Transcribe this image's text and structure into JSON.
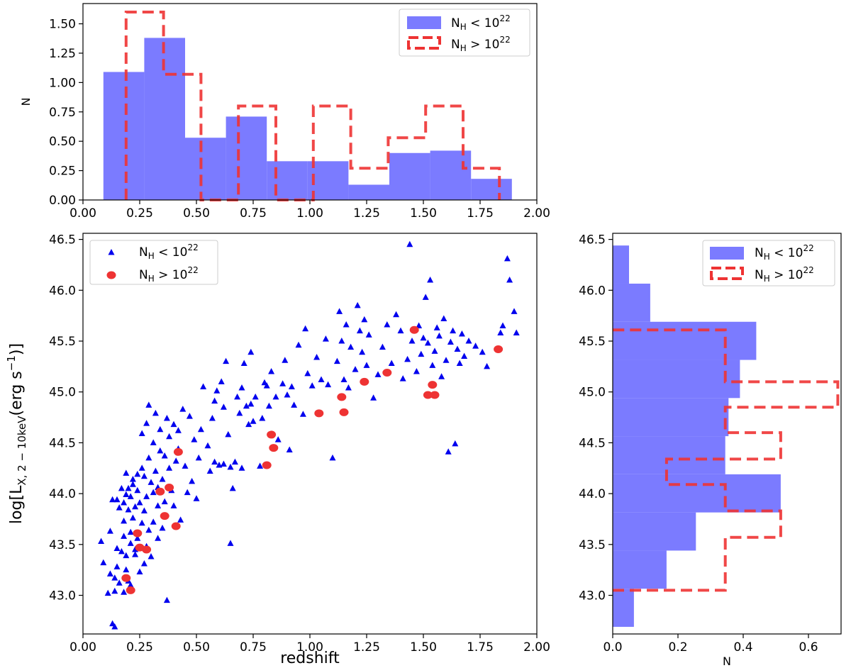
{
  "colors": {
    "blue_fill": "#7b7bff",
    "blue_point": "#0000ee",
    "red": "#ee3333"
  },
  "legend": {
    "low_label": "N",
    "low_sub": "H",
    "low_rel": " < 10",
    "low_exp": "22",
    "high_label": "N",
    "high_sub": "H",
    "high_rel": " > 10",
    "high_exp": "22"
  },
  "chart_data": [
    {
      "id": "top-histogram",
      "type": "bar",
      "title": "",
      "xlabel": "",
      "ylabel": "N",
      "xlim": [
        0.0,
        2.0
      ],
      "ylim": [
        0.0,
        1.6
      ],
      "xticks": [
        "0.00",
        "0.25",
        "0.50",
        "0.75",
        "1.00",
        "1.25",
        "1.50",
        "1.75",
        "2.00"
      ],
      "yticks": [
        "0.00",
        "0.25",
        "0.50",
        "0.75",
        "1.00",
        "1.25",
        "1.50"
      ],
      "series": [
        {
          "name": "N_H < 10^22",
          "style": "filled",
          "edges": [
            0.09,
            0.27,
            0.45,
            0.63,
            0.81,
            0.99,
            1.17,
            1.35,
            1.53,
            1.71,
            1.89
          ],
          "values": [
            1.09,
            1.38,
            0.53,
            0.71,
            0.33,
            0.33,
            0.13,
            0.4,
            0.42,
            0.18
          ]
        },
        {
          "name": "N_H > 10^22",
          "style": "dashed-step",
          "edges": [
            0.19,
            0.355,
            0.52,
            0.685,
            0.85,
            1.015,
            1.18,
            1.345,
            1.51,
            1.675,
            1.835
          ],
          "values": [
            1.6,
            1.07,
            0.0,
            0.8,
            0.0,
            0.8,
            0.27,
            0.53,
            0.8,
            0.27
          ]
        }
      ]
    },
    {
      "id": "main-scatter",
      "type": "scatter",
      "title": "",
      "xlabel": "redshift",
      "ylabel": "log[L",
      "ylabel_sub": "X, 2 − 10keV",
      "ylabel_unit": "(erg s",
      "ylabel_exp": "−1",
      "ylabel_end": ")]",
      "xlim": [
        0.0,
        2.0
      ],
      "ylim": [
        42.62,
        46.56
      ],
      "xticks": [
        "0.00",
        "0.25",
        "0.50",
        "0.75",
        "1.00",
        "1.25",
        "1.50",
        "1.75",
        "2.00"
      ],
      "yticks": [
        "43.0",
        "43.5",
        "44.0",
        "44.5",
        "45.0",
        "45.5",
        "46.0",
        "46.5"
      ],
      "series": [
        {
          "name": "N_H < 10^22",
          "marker": "triangle",
          "points": [
            [
              0.08,
              43.53
            ],
            [
              0.09,
              43.32
            ],
            [
              0.11,
              43.02
            ],
            [
              0.12,
              43.21
            ],
            [
              0.12,
              43.63
            ],
            [
              0.13,
              43.94
            ],
            [
              0.13,
              42.72
            ],
            [
              0.14,
              42.69
            ],
            [
              0.14,
              43.17
            ],
            [
              0.14,
              43.04
            ],
            [
              0.15,
              43.94
            ],
            [
              0.15,
              43.46
            ],
            [
              0.15,
              43.28
            ],
            [
              0.16,
              43.86
            ],
            [
              0.16,
              43.12
            ],
            [
              0.17,
              43.43
            ],
            [
              0.17,
              44.05
            ],
            [
              0.18,
              43.73
            ],
            [
              0.18,
              43.03
            ],
            [
              0.18,
              43.91
            ],
            [
              0.18,
              43.58
            ],
            [
              0.19,
              44.2
            ],
            [
              0.19,
              43.25
            ],
            [
              0.19,
              43.99
            ],
            [
              0.19,
              43.39
            ],
            [
              0.2,
              43.14
            ],
            [
              0.2,
              43.84
            ],
            [
              0.2,
              44.05
            ],
            [
              0.21,
              43.62
            ],
            [
              0.21,
              43.97
            ],
            [
              0.21,
              43.51
            ],
            [
              0.21,
              43.1
            ],
            [
              0.22,
              44.14
            ],
            [
              0.22,
              44.09
            ],
            [
              0.22,
              43.76
            ],
            [
              0.23,
              43.45
            ],
            [
              0.23,
              43.87
            ],
            [
              0.23,
              43.4
            ],
            [
              0.24,
              44.19
            ],
            [
              0.24,
              44.03
            ],
            [
              0.24,
              43.56
            ],
            [
              0.25,
              43.23
            ],
            [
              0.25,
              43.91
            ],
            [
              0.26,
              44.59
            ],
            [
              0.26,
              43.71
            ],
            [
              0.26,
              44.25
            ],
            [
              0.27,
              43.31
            ],
            [
              0.27,
              44.17
            ],
            [
              0.27,
              43.83
            ],
            [
              0.28,
              43.48
            ],
            [
              0.28,
              44.69
            ],
            [
              0.28,
              43.97
            ],
            [
              0.29,
              43.64
            ],
            [
              0.29,
              44.87
            ],
            [
              0.29,
              44.35
            ],
            [
              0.3,
              44.11
            ],
            [
              0.3,
              43.38
            ],
            [
              0.31,
              44.01
            ],
            [
              0.31,
              43.72
            ],
            [
              0.31,
              44.5
            ],
            [
              0.32,
              44.79
            ],
            [
              0.32,
              44.22
            ],
            [
              0.33,
              43.56
            ],
            [
              0.33,
              43.88
            ],
            [
              0.33,
              44.06
            ],
            [
              0.34,
              44.63
            ],
            [
              0.34,
              44.42
            ],
            [
              0.35,
              43.66
            ],
            [
              0.35,
              44.14
            ],
            [
              0.36,
              44.37
            ],
            [
              0.36,
              43.92
            ],
            [
              0.37,
              42.95
            ],
            [
              0.37,
              44.74
            ],
            [
              0.38,
              44.25
            ],
            [
              0.38,
              44.56
            ],
            [
              0.39,
              44.03
            ],
            [
              0.4,
              44.68
            ],
            [
              0.4,
              43.88
            ],
            [
              0.41,
              44.32
            ],
            [
              0.42,
              44.44
            ],
            [
              0.42,
              44.62
            ],
            [
              0.43,
              43.74
            ],
            [
              0.44,
              44.83
            ],
            [
              0.45,
              44.27
            ],
            [
              0.46,
              44.01
            ],
            [
              0.47,
              44.76
            ],
            [
              0.48,
              44.12
            ],
            [
              0.49,
              44.53
            ],
            [
              0.5,
              43.95
            ],
            [
              0.51,
              44.35
            ],
            [
              0.52,
              44.63
            ],
            [
              0.53,
              45.05
            ],
            [
              0.55,
              44.47
            ],
            [
              0.56,
              44.22
            ],
            [
              0.57,
              44.74
            ],
            [
              0.58,
              44.91
            ],
            [
              0.58,
              44.31
            ],
            [
              0.59,
              45.01
            ],
            [
              0.6,
              44.28
            ],
            [
              0.61,
              45.1
            ],
            [
              0.62,
              44.85
            ],
            [
              0.62,
              44.29
            ],
            [
              0.63,
              45.3
            ],
            [
              0.64,
              44.58
            ],
            [
              0.65,
              44.26
            ],
            [
              0.65,
              43.51
            ],
            [
              0.66,
              44.05
            ],
            [
              0.67,
              44.31
            ],
            [
              0.68,
              44.95
            ],
            [
              0.69,
              44.79
            ],
            [
              0.7,
              45.04
            ],
            [
              0.7,
              44.25
            ],
            [
              0.71,
              45.28
            ],
            [
              0.72,
              44.86
            ],
            [
              0.73,
              44.68
            ],
            [
              0.74,
              45.39
            ],
            [
              0.74,
              44.88
            ],
            [
              0.75,
              44.71
            ],
            [
              0.76,
              44.95
            ],
            [
              0.78,
              44.27
            ],
            [
              0.79,
              44.74
            ],
            [
              0.8,
              45.09
            ],
            [
              0.81,
              45.06
            ],
            [
              0.82,
              44.86
            ],
            [
              0.83,
              45.2
            ],
            [
              0.85,
              44.95
            ],
            [
              0.86,
              44.53
            ],
            [
              0.88,
              45.08
            ],
            [
              0.89,
              45.31
            ],
            [
              0.9,
              44.97
            ],
            [
              0.91,
              44.43
            ],
            [
              0.92,
              45.05
            ],
            [
              0.93,
              44.87
            ],
            [
              0.95,
              45.46
            ],
            [
              0.97,
              44.78
            ],
            [
              0.98,
              45.62
            ],
            [
              0.99,
              45.18
            ],
            [
              1.01,
              45.06
            ],
            [
              1.03,
              45.34
            ],
            [
              1.05,
              45.12
            ],
            [
              1.07,
              45.52
            ],
            [
              1.08,
              45.07
            ],
            [
              1.1,
              44.35
            ],
            [
              1.12,
              45.3
            ],
            [
              1.13,
              45.79
            ],
            [
              1.14,
              45.5
            ],
            [
              1.15,
              45.12
            ],
            [
              1.16,
              45.66
            ],
            [
              1.17,
              45.04
            ],
            [
              1.18,
              45.44
            ],
            [
              1.2,
              45.22
            ],
            [
              1.21,
              45.85
            ],
            [
              1.22,
              45.6
            ],
            [
              1.23,
              45.39
            ],
            [
              1.24,
              45.71
            ],
            [
              1.25,
              45.26
            ],
            [
              1.26,
              45.56
            ],
            [
              1.28,
              44.94
            ],
            [
              1.3,
              45.17
            ],
            [
              1.32,
              45.44
            ],
            [
              1.34,
              45.66
            ],
            [
              1.36,
              45.28
            ],
            [
              1.38,
              45.76
            ],
            [
              1.4,
              45.6
            ],
            [
              1.41,
              45.13
            ],
            [
              1.43,
              45.32
            ],
            [
              1.44,
              46.45
            ],
            [
              1.45,
              45.5
            ],
            [
              1.47,
              45.2
            ],
            [
              1.48,
              45.65
            ],
            [
              1.49,
              45.37
            ],
            [
              1.5,
              45.53
            ],
            [
              1.51,
              45.93
            ],
            [
              1.52,
              45.48
            ],
            [
              1.53,
              46.1
            ],
            [
              1.54,
              45.26
            ],
            [
              1.55,
              45.4
            ],
            [
              1.56,
              45.63
            ],
            [
              1.57,
              45.55
            ],
            [
              1.58,
              45.15
            ],
            [
              1.59,
              45.72
            ],
            [
              1.6,
              45.31
            ],
            [
              1.61,
              44.41
            ],
            [
              1.62,
              45.49
            ],
            [
              1.63,
              45.6
            ],
            [
              1.64,
              44.49
            ],
            [
              1.65,
              45.42
            ],
            [
              1.66,
              45.28
            ],
            [
              1.67,
              45.57
            ],
            [
              1.68,
              45.35
            ],
            [
              1.7,
              45.5
            ],
            [
              1.73,
              45.45
            ],
            [
              1.76,
              45.39
            ],
            [
              1.78,
              45.25
            ],
            [
              1.84,
              45.58
            ],
            [
              1.85,
              45.65
            ],
            [
              1.87,
              46.31
            ],
            [
              1.88,
              46.1
            ],
            [
              1.9,
              45.79
            ],
            [
              1.91,
              45.58
            ]
          ]
        },
        {
          "name": "N_H > 10^22",
          "marker": "circle",
          "points": [
            [
              0.19,
              43.17
            ],
            [
              0.21,
              43.05
            ],
            [
              0.24,
              43.61
            ],
            [
              0.25,
              43.47
            ],
            [
              0.28,
              43.45
            ],
            [
              0.34,
              44.02
            ],
            [
              0.36,
              43.78
            ],
            [
              0.38,
              44.06
            ],
            [
              0.41,
              43.68
            ],
            [
              0.42,
              44.41
            ],
            [
              0.83,
              44.58
            ],
            [
              0.84,
              44.45
            ],
            [
              0.81,
              44.28
            ],
            [
              1.04,
              44.79
            ],
            [
              1.14,
              44.95
            ],
            [
              1.15,
              44.8
            ],
            [
              1.24,
              45.1
            ],
            [
              1.34,
              45.19
            ],
            [
              1.46,
              45.61
            ],
            [
              1.52,
              44.97
            ],
            [
              1.54,
              45.07
            ],
            [
              1.55,
              44.97
            ],
            [
              1.83,
              45.42
            ]
          ]
        }
      ]
    },
    {
      "id": "right-histogram",
      "type": "bar",
      "orientation": "horizontal",
      "title": "",
      "xlabel": "N",
      "ylabel": "",
      "xlim": [
        0.0,
        0.7
      ],
      "ylim": [
        42.62,
        46.56
      ],
      "xticks": [
        "0.0",
        "0.2",
        "0.4",
        "0.6"
      ],
      "yticks": [
        "43.0",
        "43.5",
        "44.0",
        "44.5",
        "45.0",
        "45.5",
        "46.0",
        "46.5"
      ],
      "series": [
        {
          "name": "N_H < 10^22",
          "style": "filled",
          "edges": [
            42.69,
            43.065,
            43.44,
            43.815,
            44.19,
            44.565,
            44.94,
            45.315,
            45.69,
            46.065,
            46.44
          ],
          "values": [
            0.065,
            0.165,
            0.255,
            0.515,
            0.345,
            0.355,
            0.39,
            0.44,
            0.115,
            0.05
          ]
        },
        {
          "name": "N_H > 10^22",
          "style": "dashed-step",
          "edges": [
            43.05,
            43.31,
            43.57,
            43.83,
            44.09,
            44.34,
            44.6,
            44.85,
            45.1,
            45.36,
            45.61
          ],
          "values": [
            0.345,
            0.345,
            0.515,
            0.345,
            0.165,
            0.515,
            0.345,
            0.69,
            0.345,
            0.345
          ]
        }
      ]
    }
  ]
}
